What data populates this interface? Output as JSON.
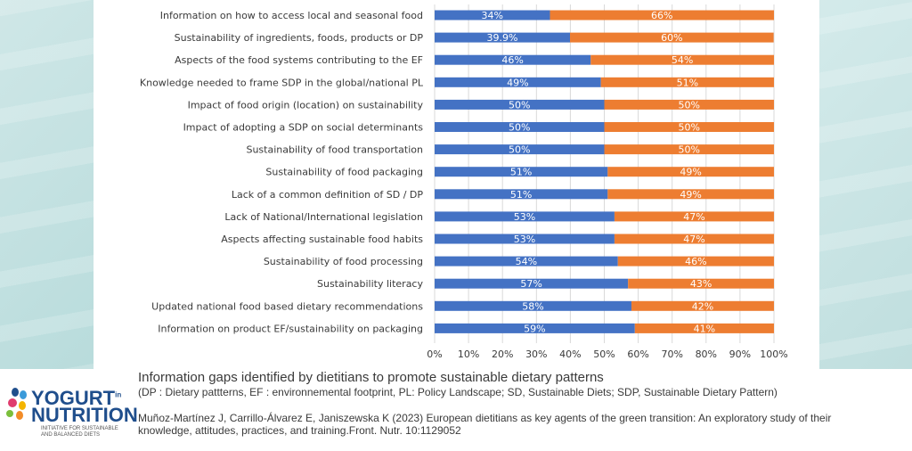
{
  "chart_data": {
    "type": "bar",
    "orientation": "horizontal",
    "stacked": true,
    "categories": [
      "Information on how to access local and seasonal food",
      "Sustainability of ingredients, foods, products or DP",
      "Aspects of the food systems contributing to the EF",
      "Knowledge needed to frame SDP in the global/national PL",
      "Impact of food origin (location) on sustainability",
      "Impact of adopting a SDP on social determinants",
      "Sustainability of food transportation",
      "Sustainability of food packaging ",
      "Lack of a common definition of SD / DP",
      "Lack of National/International legislation ",
      "Aspects affecting sustainable food habits",
      "Sustainability of food processing",
      "Sustainability literacy",
      "Updated national food based dietary recommendations ",
      "Information on product EF/sustainability on packaging"
    ],
    "series": [
      {
        "color": "#4472c4",
        "values": [
          34,
          39.9,
          46,
          49,
          50,
          50,
          50,
          51,
          51,
          53,
          53,
          54,
          57,
          58,
          59
        ],
        "labels": [
          "34%",
          "39.9%",
          "46%",
          "49%",
          "50%",
          "50%",
          "50%",
          "51%",
          "51%",
          "53%",
          "53%",
          "54%",
          "57%",
          "58%",
          "59%"
        ]
      },
      {
        "color": "#ed7d31",
        "values": [
          66,
          60,
          54,
          51,
          50,
          50,
          50,
          49,
          49,
          47,
          47,
          46,
          43,
          42,
          41
        ],
        "labels": [
          "66%",
          "60%",
          "54%",
          "51%",
          "50%",
          "50%",
          "50%",
          "49%",
          "49%",
          "47%",
          "47%",
          "46%",
          "43%",
          "42%",
          "41%"
        ]
      }
    ],
    "xlim": [
      0,
      100
    ],
    "xticks": [
      0,
      10,
      20,
      30,
      40,
      50,
      60,
      70,
      80,
      90,
      100
    ],
    "xtick_labels": [
      "0%",
      "10%",
      "20%",
      "30%",
      "40%",
      "50%",
      "60%",
      "70%",
      "80%",
      "90%",
      "100%"
    ],
    "grid": true,
    "legend": "none"
  },
  "footer": {
    "title": "Information gaps identified by dietitians to promote sustainable dietary patterns",
    "note": "(DP : Dietary pattterns, EF : environnemental footprint, PL: Policy Landscape; SD, Sustainable Diets; SDP, Sustainable Dietary Pattern)",
    "citation": "Muñoz-Martínez J, Carrillo-Álvarez E, Janiszewska K (2023) European dietitians as key agents of the green transition: An exploratory study of their knowledge, attitudes, practices, and training.Front. Nutr. 10:1129052"
  },
  "logo": {
    "name_line1": "YOGURT",
    "superscript": "in",
    "name_line2": "NUTRITION",
    "tagline": "Initiative for sustainable and balanced diets"
  },
  "colors": {
    "blue": "#4472c4",
    "orange": "#ed7d31",
    "logo_navy": "#1f4e8c"
  }
}
